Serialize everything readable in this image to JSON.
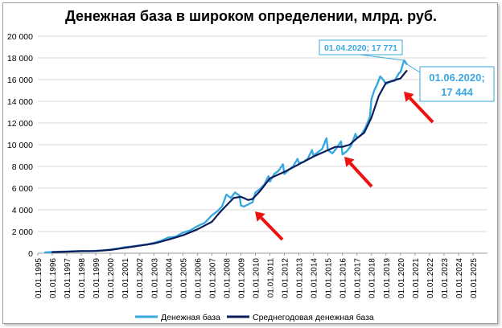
{
  "chart_data": {
    "type": "line",
    "title": "Денежная база в широком определении, млрд. руб.",
    "xlabel": "",
    "ylabel": "",
    "ylim": [
      0,
      20000
    ],
    "yticks": [
      "0",
      "2 000",
      "4 000",
      "6 000",
      "8 000",
      "10 000",
      "12 000",
      "14 000",
      "16 000",
      "18 000",
      "20 000"
    ],
    "xticks": [
      "01.01.1995",
      "01.01.1996",
      "01.01.1997",
      "01.01.1998",
      "01.01.1999",
      "01.01.2000",
      "01.01.2001",
      "01.01.2002",
      "01.01.2003",
      "01.01.2004",
      "01.01.2005",
      "01.01.2006",
      "01.01.2007",
      "01.01.2008",
      "01.01.2009",
      "01.01.2010",
      "01.01.2011",
      "01.01.2012",
      "01.01.2013",
      "01.01.2014",
      "01.01.2015",
      "01.01.2016",
      "01.01.2017",
      "01.01.2018",
      "01.01.2019",
      "01.01.2020",
      "01.01.2021",
      "01.01.2022",
      "01.01.2023",
      "01.01.2024",
      "01.01.2025"
    ],
    "xlim": [
      1995.0,
      2026.0
    ],
    "grid": true,
    "legend": "bottom",
    "series": [
      {
        "name": "Денежная база",
        "color": "#3aa8e0",
        "points": [
          [
            1995.5,
            80
          ],
          [
            1996.0,
            110
          ],
          [
            1996.5,
            140
          ],
          [
            1997.0,
            160
          ],
          [
            1997.5,
            190
          ],
          [
            1998.0,
            200
          ],
          [
            1998.5,
            190
          ],
          [
            1999.0,
            220
          ],
          [
            1999.5,
            270
          ],
          [
            2000.0,
            340
          ],
          [
            2000.5,
            430
          ],
          [
            2001.0,
            560
          ],
          [
            2001.5,
            620
          ],
          [
            2002.0,
            720
          ],
          [
            2002.5,
            790
          ],
          [
            2003.0,
            960
          ],
          [
            2003.5,
            1150
          ],
          [
            2004.0,
            1450
          ],
          [
            2004.5,
            1520
          ],
          [
            2005.0,
            1900
          ],
          [
            2005.5,
            2100
          ],
          [
            2006.0,
            2500
          ],
          [
            2006.5,
            2800
          ],
          [
            2007.0,
            3500
          ],
          [
            2007.4,
            3900
          ],
          [
            2007.7,
            4300
          ],
          [
            2008.0,
            5400
          ],
          [
            2008.3,
            5100
          ],
          [
            2008.6,
            5600
          ],
          [
            2008.9,
            5300
          ],
          [
            2009.0,
            4400
          ],
          [
            2009.2,
            4300
          ],
          [
            2009.5,
            4500
          ],
          [
            2009.8,
            4700
          ],
          [
            2010.0,
            5600
          ],
          [
            2010.3,
            5900
          ],
          [
            2010.6,
            6300
          ],
          [
            2010.9,
            7100
          ],
          [
            2011.0,
            6600
          ],
          [
            2011.3,
            7300
          ],
          [
            2011.6,
            7600
          ],
          [
            2011.9,
            8200
          ],
          [
            2012.0,
            7300
          ],
          [
            2012.3,
            7700
          ],
          [
            2012.6,
            8000
          ],
          [
            2012.9,
            8700
          ],
          [
            2013.0,
            8300
          ],
          [
            2013.3,
            8400
          ],
          [
            2013.6,
            8700
          ],
          [
            2013.9,
            9500
          ],
          [
            2014.0,
            9000
          ],
          [
            2014.3,
            9300
          ],
          [
            2014.6,
            9600
          ],
          [
            2014.9,
            10600
          ],
          [
            2015.0,
            9500
          ],
          [
            2015.3,
            9200
          ],
          [
            2015.6,
            9700
          ],
          [
            2015.9,
            10300
          ],
          [
            2016.0,
            9100
          ],
          [
            2016.3,
            9400
          ],
          [
            2016.6,
            9900
          ],
          [
            2016.9,
            11000
          ],
          [
            2017.0,
            10600
          ],
          [
            2017.3,
            10900
          ],
          [
            2017.6,
            11600
          ],
          [
            2017.9,
            12600
          ],
          [
            2018.0,
            14200
          ],
          [
            2018.2,
            15000
          ],
          [
            2018.4,
            15600
          ],
          [
            2018.6,
            16300
          ],
          [
            2018.8,
            16000
          ],
          [
            2019.0,
            15600
          ],
          [
            2019.3,
            15800
          ],
          [
            2019.6,
            15900
          ],
          [
            2019.9,
            16600
          ],
          [
            2020.0,
            16700
          ],
          [
            2020.25,
            17771
          ],
          [
            2020.42,
            17444
          ]
        ]
      },
      {
        "name": "Среднегодовая денежная база",
        "color": "#0b1c5a",
        "points": [
          [
            1996.0,
            100
          ],
          [
            1997.0,
            140
          ],
          [
            1998.0,
            190
          ],
          [
            1999.0,
            210
          ],
          [
            2000.0,
            300
          ],
          [
            2001.0,
            500
          ],
          [
            2002.0,
            700
          ],
          [
            2003.0,
            900
          ],
          [
            2004.0,
            1250
          ],
          [
            2005.0,
            1650
          ],
          [
            2006.0,
            2200
          ],
          [
            2007.0,
            2900
          ],
          [
            2007.5,
            3700
          ],
          [
            2008.0,
            4400
          ],
          [
            2008.5,
            5100
          ],
          [
            2009.0,
            5200
          ],
          [
            2009.5,
            4900
          ],
          [
            2009.8,
            5000
          ],
          [
            2010.3,
            5700
          ],
          [
            2011.0,
            6900
          ],
          [
            2012.0,
            7500
          ],
          [
            2013.0,
            8200
          ],
          [
            2014.0,
            8900
          ],
          [
            2015.0,
            9500
          ],
          [
            2015.5,
            9800
          ],
          [
            2016.0,
            9800
          ],
          [
            2016.5,
            10000
          ],
          [
            2017.0,
            10600
          ],
          [
            2017.5,
            11100
          ],
          [
            2018.0,
            12500
          ],
          [
            2018.5,
            14500
          ],
          [
            2019.0,
            15700
          ],
          [
            2019.5,
            15900
          ],
          [
            2020.0,
            16100
          ],
          [
            2020.42,
            16800
          ]
        ]
      }
    ],
    "annotations": [
      {
        "text": "01.04.2020;  17 771",
        "x": 2020.25,
        "y": 17771,
        "style": "boxed"
      },
      {
        "line1": "01.06.2020;",
        "line2": "17 444",
        "x": 2020.42,
        "y": 17444,
        "style": "boxed-large"
      }
    ],
    "arrows_color": "#ee1111"
  }
}
